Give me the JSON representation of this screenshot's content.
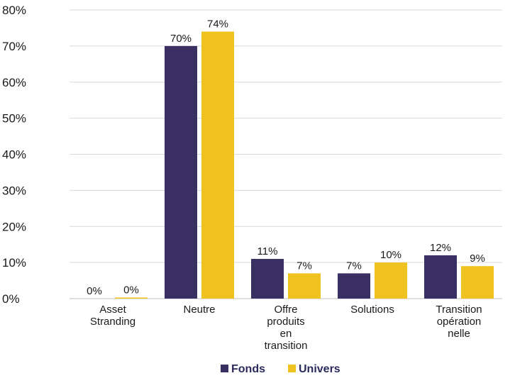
{
  "chart_data": {
    "type": "bar",
    "categories": [
      [
        "Asset",
        "Stranding"
      ],
      [
        "Neutre"
      ],
      [
        "Offre",
        "produits",
        "en",
        "transition"
      ],
      [
        "Solutions"
      ],
      [
        "Transition",
        "opération",
        "nelle"
      ]
    ],
    "series": [
      {
        "name": "Fonds",
        "values": [
          0,
          70,
          11,
          7,
          12
        ],
        "labels": [
          "0%",
          "70%",
          "11%",
          "7%",
          "12%"
        ],
        "color": "#3a2f63"
      },
      {
        "name": "Univers",
        "values": [
          0.3,
          74,
          7,
          10,
          9
        ],
        "labels": [
          "0%",
          "74%",
          "7%",
          "10%",
          "9%"
        ],
        "color": "#f0c21f"
      }
    ],
    "ylim": [
      0,
      80
    ],
    "yticks": [
      "0%",
      "10%",
      "20%",
      "30%",
      "40%",
      "50%",
      "60%",
      "70%",
      "80%"
    ],
    "grid": true,
    "legend_position": "bottom"
  }
}
